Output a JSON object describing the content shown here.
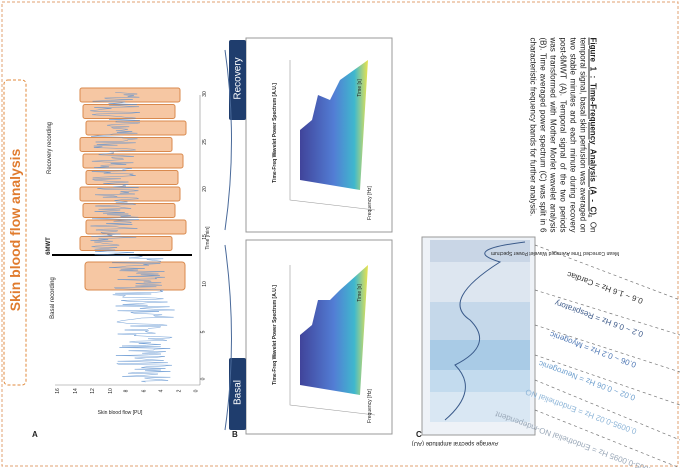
{
  "title": "Skin blood flow analysis",
  "panel_a": {
    "label": "A",
    "basal": "Basal recording",
    "recovery": "Recovery recording",
    "event": "6MWT",
    "y_axis": "Skin blood flow [PU]",
    "x_axis": "Time [min]",
    "xticks": [
      "0",
      "5",
      "10",
      "15",
      "20",
      "25",
      "30"
    ],
    "yticks": [
      "0",
      "2",
      "4",
      "6",
      "8",
      "10",
      "12",
      "14",
      "16"
    ]
  },
  "panel_b": {
    "label": "B",
    "basal": "Basal",
    "recovery": "Recovery",
    "spectrum_title": "Time-Freq Wavelet Power Spectrum [A.U.]",
    "frequency_axis": "Frequency [Hz]",
    "time_axis": "Time [s]"
  },
  "panel_c": {
    "label": "C",
    "title": "Mean Corrected Time Averaged Wavelet Power Spectrum",
    "y_axis": "Average spectral amplitude (AU)",
    "bands": [
      "0.6 ~ 1.6 Hz = Cardiac",
      "0.2 ~ 0.6 Hz = Respiratory",
      "0.06 ~ 0.2 Hz = Myogenic",
      "0.02 ~ 0.06 Hz = Neurogenic",
      "0.0095-0.02 Hz = Endothelial NO",
      "0.005-0.0095 Hz = Endothelial NO-independent"
    ]
  },
  "caption": {
    "heading": "Figure 1 : Time-Frequency Analysis (A - C).",
    "body": "On temporal signal, basal skin perfusion was averaged on two stable minutes and each minute during recovery post-6MWT (A). Temporal signal of the two periods was transformed with Mother Morlet wavelet analysis (B). Time averaged power spectrum (C) was split in 6 characteristic frequency bands for further analysis."
  }
}
